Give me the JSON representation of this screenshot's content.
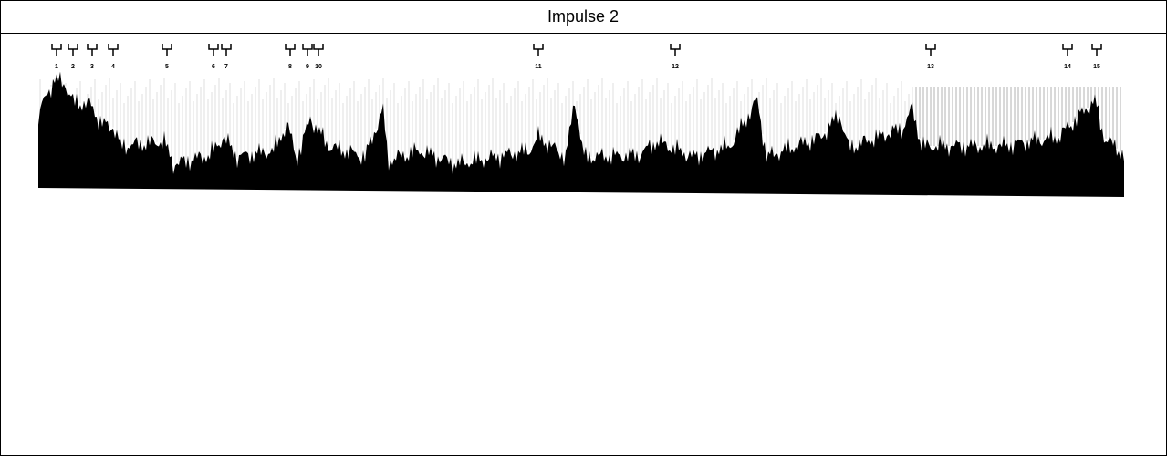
{
  "header": {
    "title": "Impulse 2"
  },
  "figure": {
    "markers": [
      "1",
      "2",
      "3",
      "4",
      "5",
      "6",
      "7",
      "8",
      "9",
      "10",
      "11",
      "12",
      "13",
      "14",
      "15"
    ]
  }
}
